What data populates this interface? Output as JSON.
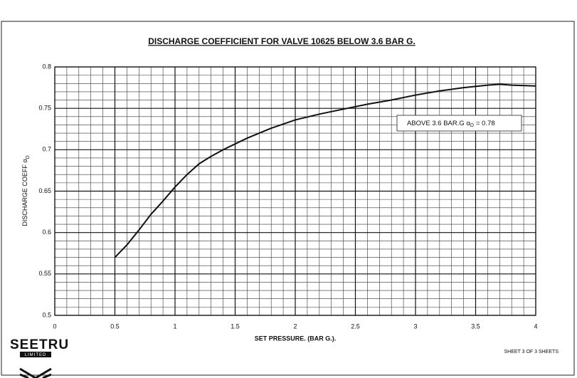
{
  "chart_data": {
    "type": "line",
    "title": "DISCHARGE COEFFICIENT FOR VALVE 10625 BELOW 3.6 BAR G.",
    "x_label": "SET PRESSURE. (BAR G.).",
    "y_label": {
      "text": "DISCHARGE COEFF α",
      "subscript": "D"
    },
    "annotation": {
      "text": "ABOVE 3.6 BAR.G α",
      "subscript": "D",
      "text_after": "= 0.78"
    },
    "x": [
      0.5,
      0.6,
      0.7,
      0.8,
      0.9,
      1.0,
      1.1,
      1.2,
      1.3,
      1.4,
      1.5,
      1.6,
      1.7,
      1.8,
      1.9,
      2.0,
      2.2,
      2.4,
      2.6,
      2.8,
      3.0,
      3.2,
      3.4,
      3.6,
      3.7,
      3.8,
      4.0
    ],
    "series": [
      {
        "name": "Discharge coefficient",
        "color": "#111111",
        "values": [
          0.57,
          0.585,
          0.603,
          0.622,
          0.638,
          0.655,
          0.67,
          0.683,
          0.692,
          0.7,
          0.707,
          0.714,
          0.72,
          0.726,
          0.731,
          0.736,
          0.743,
          0.749,
          0.755,
          0.76,
          0.766,
          0.771,
          0.775,
          0.778,
          0.779,
          0.778,
          0.777
        ]
      }
    ],
    "xlim": [
      0,
      4
    ],
    "xticks": [
      0,
      0.5,
      1,
      1.5,
      2,
      2.5,
      3,
      3.5,
      4
    ],
    "ylim": [
      0.5,
      0.8
    ],
    "yticks": [
      0.5,
      0.55,
      0.6,
      0.65,
      0.7,
      0.75,
      0.8
    ],
    "grid": true
  },
  "footer": {
    "logo": "SEETRU",
    "logo_sub": "LIMITED",
    "sheet": "SHEET 3 OF 3 SHEETS"
  }
}
